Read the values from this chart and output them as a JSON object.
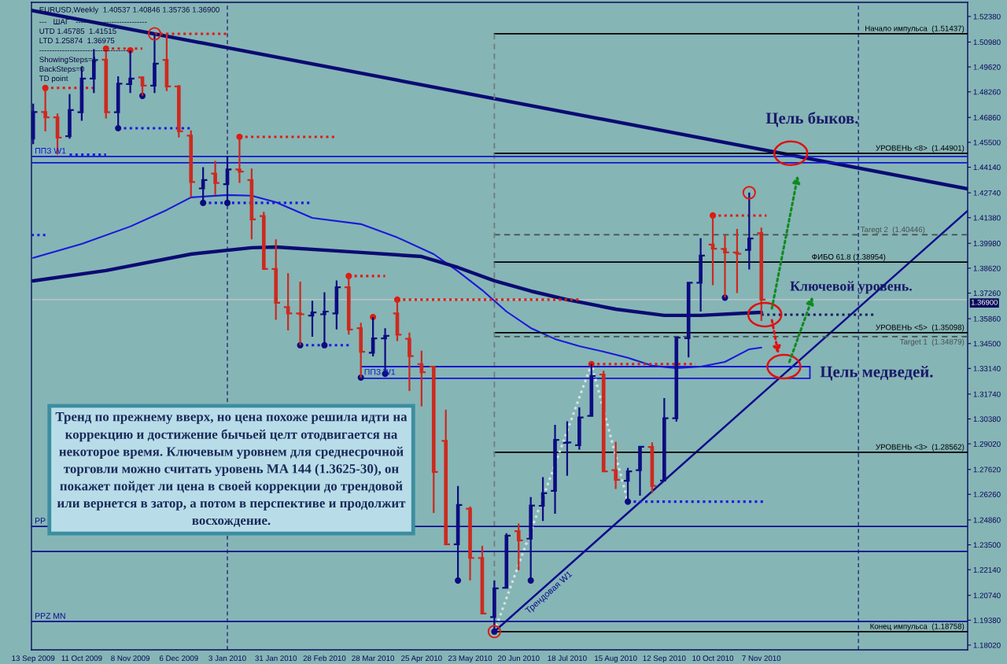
{
  "chart_data": {
    "type": "candlestick",
    "title": "EURUSD,Weekly  1.40537 1.40846 1.35736 1.36900",
    "subtitle": "---   ШАГ   ----------------------------\nUTD 1.45785  1.41515\nLTD 1.25874  1.36975\n-----------------------------------\nShowingSteps=1\nBackSteps=0\nTD point",
    "x": [
      "2009-09-13",
      "2009-09-20",
      "2009-09-27",
      "2009-10-04",
      "2009-10-11",
      "2009-10-18",
      "2009-10-25",
      "2009-11-01",
      "2009-11-08",
      "2009-11-15",
      "2009-11-22",
      "2009-11-29",
      "2009-12-06",
      "2009-12-13",
      "2009-12-20",
      "2009-12-27",
      "2010-01-03",
      "2010-01-10",
      "2010-01-17",
      "2010-01-24",
      "2010-01-31",
      "2010-02-07",
      "2010-02-14",
      "2010-02-21",
      "2010-02-28",
      "2010-03-07",
      "2010-03-14",
      "2010-03-21",
      "2010-03-28",
      "2010-04-04",
      "2010-04-11",
      "2010-04-18",
      "2010-04-25",
      "2010-05-02",
      "2010-05-09",
      "2010-05-16",
      "2010-05-23",
      "2010-05-30",
      "2010-06-06",
      "2010-06-13",
      "2010-06-20",
      "2010-06-27",
      "2010-07-04",
      "2010-07-11",
      "2010-07-18",
      "2010-07-25",
      "2010-08-01",
      "2010-08-08",
      "2010-08-15",
      "2010-08-22",
      "2010-08-29",
      "2010-09-05",
      "2010-09-12",
      "2010-09-19",
      "2010-09-26",
      "2010-10-03",
      "2010-10-10",
      "2010-10-17",
      "2010-10-24",
      "2010-10-31",
      "2010-11-07"
    ],
    "ohlc": [
      [
        1.457,
        1.4761,
        1.454,
        1.4716
      ],
      [
        1.4716,
        1.4847,
        1.461,
        1.4687
      ],
      [
        1.4687,
        1.4708,
        1.4483,
        1.4576
      ],
      [
        1.4583,
        1.4814,
        1.457,
        1.4726
      ],
      [
        1.4715,
        1.4963,
        1.4668,
        1.4898
      ],
      [
        1.4898,
        1.5059,
        1.4819,
        1.5
      ],
      [
        1.5002,
        1.5063,
        1.468,
        1.4715
      ],
      [
        1.4715,
        1.4911,
        1.4629,
        1.487
      ],
      [
        1.4868,
        1.5053,
        1.4819,
        1.4898
      ],
      [
        1.4905,
        1.4911,
        1.4804,
        1.486
      ],
      [
        1.486,
        1.5143,
        1.4819,
        1.498
      ],
      [
        1.5001,
        1.5145,
        1.483,
        1.4855
      ],
      [
        1.4855,
        1.4864,
        1.4576,
        1.461
      ],
      [
        1.4587,
        1.4615,
        1.4251,
        1.4333
      ],
      [
        1.4298,
        1.4414,
        1.4219,
        1.4344
      ],
      [
        1.4379,
        1.4448,
        1.4263,
        1.4328
      ],
      [
        1.4321,
        1.4476,
        1.4219,
        1.4402
      ],
      [
        1.4402,
        1.458,
        1.4328,
        1.439
      ],
      [
        1.4344,
        1.4407,
        1.402,
        1.4129
      ],
      [
        1.4147,
        1.417,
        1.3858,
        1.3858
      ],
      [
        1.3858,
        1.402,
        1.358,
        1.3673
      ],
      [
        1.3649,
        1.3835,
        1.3522,
        1.3615
      ],
      [
        1.3615,
        1.3788,
        1.3441,
        1.361
      ],
      [
        1.3603,
        1.3684,
        1.3487,
        1.362
      ],
      [
        1.361,
        1.373,
        1.3441,
        1.3625
      ],
      [
        1.3615,
        1.3795,
        1.3527,
        1.3758
      ],
      [
        1.3758,
        1.3819,
        1.3499,
        1.3527
      ],
      [
        1.3534,
        1.3564,
        1.3264,
        1.3405
      ],
      [
        1.34,
        1.3595,
        1.338,
        1.3478
      ],
      [
        1.3478,
        1.3534,
        1.3285,
        1.3492
      ],
      [
        1.3615,
        1.369,
        1.3464,
        1.3499
      ],
      [
        1.3476,
        1.351,
        1.3191,
        1.3382
      ],
      [
        1.3338,
        1.3411,
        1.3107,
        1.3293
      ],
      [
        1.3324,
        1.3325,
        1.2524,
        1.2748
      ],
      [
        1.2918,
        1.3089,
        1.2353,
        1.2353
      ],
      [
        1.2353,
        1.2672,
        1.2155,
        1.2568
      ],
      [
        1.2547,
        1.256,
        1.2155,
        1.2278
      ],
      [
        1.2278,
        1.2345,
        1.1971,
        1.1974
      ],
      [
        1.1955,
        1.2155,
        1.18758,
        1.2112
      ],
      [
        1.2115,
        1.2414,
        1.211,
        1.24
      ],
      [
        1.2425,
        1.2466,
        1.2211,
        1.2374
      ],
      [
        1.2384,
        1.2611,
        1.2155,
        1.2565
      ],
      [
        1.2563,
        1.272,
        1.248,
        1.2632
      ],
      [
        1.2645,
        1.3006,
        1.252,
        1.2924
      ],
      [
        1.2907,
        1.3025,
        1.2727,
        1.291
      ],
      [
        1.2895,
        1.3101,
        1.287,
        1.3046
      ],
      [
        1.3055,
        1.3338,
        1.3051,
        1.3273
      ],
      [
        1.3281,
        1.3301,
        1.2748,
        1.2752
      ],
      [
        1.2758,
        1.2913,
        1.2655,
        1.2705
      ],
      [
        1.27,
        1.277,
        1.2586,
        1.2752
      ],
      [
        1.2758,
        1.2887,
        1.2619,
        1.2886
      ],
      [
        1.2885,
        1.291,
        1.2633,
        1.2672
      ],
      [
        1.2701,
        1.3152,
        1.27,
        1.3042
      ],
      [
        1.3042,
        1.3486,
        1.3023,
        1.3483
      ],
      [
        1.3479,
        1.3787,
        1.3375,
        1.3783
      ],
      [
        1.3783,
        1.4026,
        1.3625,
        1.3931
      ],
      [
        1.3991,
        1.415,
        1.3769,
        1.3969
      ],
      [
        1.3967,
        1.4045,
        1.3701,
        1.3948
      ],
      [
        1.3948,
        1.4077,
        1.3726,
        1.3941
      ],
      [
        1.3962,
        1.4275,
        1.3855,
        1.4024
      ],
      [
        1.40537,
        1.40846,
        1.35736,
        1.369
      ]
    ],
    "colors": [
      "#0c0c80",
      "#cc2a1e",
      "#cc2a1e",
      "#0c0c80",
      "#0c0c80",
      "#0c0c80",
      "#cc2a1e",
      "#0c0c80",
      "#0c0c80",
      "#cc2a1e",
      "#0c0c80",
      "#cc2a1e",
      "#cc2a1e",
      "#cc2a1e",
      "#0c0c80",
      "#cc2a1e",
      "#0c0c80",
      "#cc2a1e",
      "#cc2a1e",
      "#cc2a1e",
      "#cc2a1e",
      "#cc2a1e",
      "#cc2a1e",
      "#0c0c80",
      "#0c0c80",
      "#0c0c80",
      "#cc2a1e",
      "#cc2a1e",
      "#0c0c80",
      "#0c0c80",
      "#cc2a1e",
      "#cc2a1e",
      "#cc2a1e",
      "#cc2a1e",
      "#cc2a1e",
      "#0c0c80",
      "#cc2a1e",
      "#cc2a1e",
      "#0c0c80",
      "#0c0c80",
      "#cc2a1e",
      "#0c0c80",
      "#0c0c80",
      "#0c0c80",
      "#0c0c80",
      "#0c0c80",
      "#0c0c80",
      "#cc2a1e",
      "#cc2a1e",
      "#0c0c80",
      "#0c0c80",
      "#cc2a1e",
      "#0c0c80",
      "#0c0c80",
      "#0c0c80",
      "#0c0c80",
      "#cc2a1e",
      "#cc2a1e",
      "#cc2a1e",
      "#0c0c80",
      "#cc2a1e"
    ],
    "xlim": [
      "2009-09-12",
      "2011-03-06"
    ],
    "ylim": [
      1.1776,
      1.5315
    ],
    "xticks": [
      {
        "value": "2009-09-13",
        "label": "13 Sep 2009"
      },
      {
        "value": "2009-10-11",
        "label": "11 Oct 2009"
      },
      {
        "value": "2009-11-08",
        "label": "8 Nov 2009"
      },
      {
        "value": "2009-12-06",
        "label": "6 Dec 2009"
      },
      {
        "value": "2010-01-03",
        "label": "3 Jan 2010"
      },
      {
        "value": "2010-01-31",
        "label": "31 Jan 2010"
      },
      {
        "value": "2010-02-28",
        "label": "28 Feb 2010"
      },
      {
        "value": "2010-03-28",
        "label": "28 Mar 2010"
      },
      {
        "value": "2010-04-25",
        "label": "25 Apr 2010"
      },
      {
        "value": "2010-05-23",
        "label": "23 May 2010"
      },
      {
        "value": "2010-06-20",
        "label": "20 Jun 2010"
      },
      {
        "value": "2010-07-18",
        "label": "18 Jul 2010"
      },
      {
        "value": "2010-08-15",
        "label": "15 Aug 2010"
      },
      {
        "value": "2010-09-12",
        "label": "12 Sep 2010"
      },
      {
        "value": "2010-10-10",
        "label": "10 Oct 2010"
      },
      {
        "value": "2010-11-07",
        "label": "7 Nov 2010"
      }
    ],
    "yticks": [
      {
        "value": 1.5238,
        "label": "1.52380"
      },
      {
        "value": 1.5098,
        "label": "1.50980"
      },
      {
        "value": 1.4962,
        "label": "1.49620"
      },
      {
        "value": 1.4826,
        "label": "1.48260"
      },
      {
        "value": 1.4686,
        "label": "1.46860"
      },
      {
        "value": 1.455,
        "label": "1.45500"
      },
      {
        "value": 1.4414,
        "label": "1.44140"
      },
      {
        "value": 1.4274,
        "label": "1.42740"
      },
      {
        "value": 1.4138,
        "label": "1.41380"
      },
      {
        "value": 1.3998,
        "label": "1.39980"
      },
      {
        "value": 1.3862,
        "label": "1.38620"
      },
      {
        "value": 1.3726,
        "label": "1.37260"
      },
      {
        "value": 1.3586,
        "label": "1.35860"
      },
      {
        "value": 1.345,
        "label": "1.34500"
      },
      {
        "value": 1.3314,
        "label": "1.33140"
      },
      {
        "value": 1.3174,
        "label": "1.31740"
      },
      {
        "value": 1.3038,
        "label": "1.30380"
      },
      {
        "value": 1.2902,
        "label": "1.29020"
      },
      {
        "value": 1.2762,
        "label": "1.27620"
      },
      {
        "value": 1.2626,
        "label": "1.26260"
      },
      {
        "value": 1.2486,
        "label": "1.24860"
      },
      {
        "value": 1.235,
        "label": "1.23500"
      },
      {
        "value": 1.2214,
        "label": "1.22140"
      },
      {
        "value": 1.2074,
        "label": "1.20740"
      },
      {
        "value": 1.1938,
        "label": "1.19380"
      },
      {
        "value": 1.1802,
        "label": "1.18020"
      }
    ],
    "grid": false,
    "series": [
      {
        "type": "line",
        "color": "#1a1ad8",
        "x": [
          "2009-09-13",
          "2009-10-11",
          "2009-11-08",
          "2009-11-29",
          "2009-12-13",
          "2010-01-03",
          "2010-01-17",
          "2010-01-31",
          "2010-02-21",
          "2010-03-21",
          "2010-04-11",
          "2010-05-02",
          "2010-05-16",
          "2010-05-30",
          "2010-06-13",
          "2010-06-27",
          "2010-07-11",
          "2010-07-25",
          "2010-08-08",
          "2010-08-22",
          "2010-09-05",
          "2010-09-19",
          "2010-10-03",
          "2010-10-17",
          "2010-10-31",
          "2010-11-07"
        ],
        "values": [
          1.3918,
          1.3995,
          1.409,
          1.418,
          1.4249,
          1.4262,
          1.4258,
          1.4223,
          1.4137,
          1.4103,
          1.403,
          1.3939,
          1.3845,
          1.3742,
          1.3625,
          1.3535,
          1.3475,
          1.3436,
          1.3406,
          1.3372,
          1.3329,
          1.3316,
          1.3324,
          1.335,
          1.3419,
          1.3428
        ]
      },
      {
        "type": "line",
        "color": "#0b0b72",
        "x": [
          "2009-09-13",
          "2009-10-25",
          "2009-12-13",
          "2010-01-17",
          "2010-01-31",
          "2010-03-21",
          "2010-04-25",
          "2010-05-16",
          "2010-06-06",
          "2010-06-27",
          "2010-07-18",
          "2010-08-15",
          "2010-09-12",
          "2010-10-03",
          "2010-11-07"
        ],
        "values": [
          1.3793,
          1.3849,
          1.3939,
          1.3974,
          1.3978,
          1.3948,
          1.3926,
          1.3866,
          1.3793,
          1.3737,
          1.369,
          1.3638,
          1.3604,
          1.3604,
          1.3621
        ]
      },
      {
        "type": "line",
        "color": "#0b0b72",
        "x": [
          "2009-09-12",
          "2011-03-06"
        ],
        "values": [
          1.5271,
          1.4296
        ]
      },
      {
        "type": "line",
        "name": "Трендовая W1",
        "color": "#0d0d8c",
        "x": [
          "2010-06-06",
          "2011-03-06"
        ],
        "values": [
          1.18758,
          1.4176
        ]
      },
      {
        "type": "line",
        "name": "Начало импульса  (1.51437)",
        "color": "#000000",
        "x": [
          "2010-06-06",
          "2011-03-06"
        ],
        "values": [
          1.51437,
          1.51437
        ]
      },
      {
        "type": "line",
        "name": "УРОВЕНЬ <8>  (1.44901)",
        "color": "#000000",
        "x": [
          "2010-06-06",
          "2011-03-06"
        ],
        "values": [
          1.44901,
          1.44901
        ]
      },
      {
        "type": "line",
        "name": "Taregt 2  (1.40446)",
        "color": "#45504f",
        "line_style": "dashed",
        "x": [
          "2010-06-06",
          "2011-03-06"
        ],
        "values": [
          1.40446,
          1.40446
        ]
      },
      {
        "type": "line",
        "name": "ФИБО 61.8 (1.38954)",
        "color": "#000000",
        "x": [
          "2010-06-06",
          "2011-03-06"
        ],
        "values": [
          1.38954,
          1.38954
        ]
      },
      {
        "type": "line",
        "name": "УРОВЕНЬ <5>  (1.35098)",
        "color": "#000000",
        "x": [
          "2010-06-06",
          "2011-03-06"
        ],
        "values": [
          1.35098,
          1.35098
        ]
      },
      {
        "type": "line",
        "name": "Target 1  (1.34879)",
        "color": "#45504f",
        "line_style": "dashed",
        "x": [
          "2010-06-06",
          "2011-03-06"
        ],
        "values": [
          1.34879,
          1.34879
        ]
      },
      {
        "type": "line",
        "name": "УРОВЕНЬ <3>  (1.28562)",
        "color": "#000000",
        "x": [
          "2010-06-06",
          "2011-03-06"
        ],
        "values": [
          1.28562,
          1.28562
        ]
      },
      {
        "type": "line",
        "name": "Конец импульса  (1.18758)",
        "color": "#000000",
        "x": [
          "2010-06-06",
          "2011-03-06"
        ],
        "values": [
          1.18758,
          1.18758
        ]
      },
      {
        "type": "line",
        "color": "#6f7c7c",
        "line_style": "dashed",
        "x": [
          "2010-06-06",
          "2010-06-06"
        ],
        "values": [
          1.51437,
          1.18758
        ]
      },
      {
        "type": "line",
        "name": "PPZ MN",
        "color": "#0c0c90",
        "x": [
          "2009-09-12",
          "2011-03-06"
        ],
        "values": [
          1.1931,
          1.1931
        ]
      },
      {
        "type": "line",
        "name": "ППЗ W1",
        "color": "#1414d2",
        "x": [
          "2009-09-12",
          "2011-03-06"
        ],
        "values": [
          1.4473,
          1.4473
        ]
      },
      {
        "type": "line",
        "color": "#1414d2",
        "x": [
          "2009-09-12",
          "2011-03-06"
        ],
        "values": [
          1.4438,
          1.4438
        ]
      },
      {
        "type": "line",
        "name": "PP",
        "color": "#0c0c90",
        "x": [
          "2009-09-12",
          "2011-03-06"
        ],
        "values": [
          1.2451,
          1.2451
        ]
      },
      {
        "type": "line",
        "color": "#0c0c90",
        "x": [
          "2009-09-12",
          "2011-03-06"
        ],
        "values": [
          1.2314,
          1.2314
        ]
      },
      {
        "type": "line",
        "name": "ППЗ W1",
        "color": "#1414d2",
        "x": [
          "2010-03-21",
          "2010-12-05"
        ],
        "values": [
          1.3324,
          1.3324
        ],
        "errors": [
          null,
          [
            1.326,
            1.3324
          ]
        ]
      },
      {
        "type": "line",
        "color": "#1414d2",
        "x": [
          "2010-03-21",
          "2010-12-05"
        ],
        "values": [
          1.326,
          1.326
        ]
      },
      {
        "type": "line",
        "color": "#d8e4e4",
        "line_style": "dotted",
        "x": [
          "2010-06-06",
          "2010-08-01",
          "2010-08-22"
        ],
        "values": [
          1.18758,
          1.3338,
          1.2586
        ]
      },
      {
        "type": "line",
        "color": "#e01a10",
        "line_style": "dotted",
        "x": [
          "2009-09-20",
          "2009-10-18"
        ],
        "values": [
          1.4847,
          1.4847
        ]
      },
      {
        "type": "line",
        "color": "#e01a10",
        "line_style": "dotted",
        "x": [
          "2009-10-25",
          "2009-11-15"
        ],
        "values": [
          1.5062,
          1.5062
        ]
      },
      {
        "type": "line",
        "color": "#e01a10",
        "line_style": "dotted",
        "x": [
          "2009-11-22",
          "2010-01-03"
        ],
        "values": [
          1.5143,
          1.5143
        ]
      },
      {
        "type": "line",
        "color": "#e01a10",
        "line_style": "dotted",
        "x": [
          "2010-01-10",
          "2010-03-07"
        ],
        "values": [
          1.458,
          1.458
        ]
      },
      {
        "type": "line",
        "color": "#e01a10",
        "line_style": "dotted",
        "x": [
          "2010-03-14",
          "2010-04-04"
        ],
        "values": [
          1.3819,
          1.3819
        ]
      },
      {
        "type": "line",
        "color": "#e01a10",
        "line_style": "dotted",
        "x": [
          "2010-04-11",
          "2010-07-25"
        ],
        "values": [
          1.369,
          1.369
        ]
      },
      {
        "type": "line",
        "color": "#e01a10",
        "line_style": "dotted",
        "x": [
          "2010-08-01",
          "2010-09-30"
        ],
        "values": [
          1.3338,
          1.3338
        ]
      },
      {
        "type": "line",
        "color": "#e01a10",
        "line_style": "dotted",
        "x": [
          "2010-10-10",
          "2010-11-10"
        ],
        "values": [
          1.415,
          1.415
        ]
      },
      {
        "type": "line",
        "color": "#1a1ae0",
        "line_style": "dotted",
        "x": [
          "2009-09-12",
          "2009-09-21"
        ],
        "values": [
          1.4043,
          1.4043
        ]
      },
      {
        "type": "line",
        "color": "#1a1ae0",
        "line_style": "dotted",
        "x": [
          "2009-10-04",
          "2009-10-25"
        ],
        "values": [
          1.4483,
          1.4483
        ]
      },
      {
        "type": "line",
        "color": "#1a1ae0",
        "line_style": "dotted",
        "x": [
          "2009-11-01",
          "2009-12-13"
        ],
        "values": [
          1.4627,
          1.4627
        ]
      },
      {
        "type": "line",
        "color": "#1a1ae0",
        "line_style": "dotted",
        "x": [
          "2009-12-20",
          "2010-02-21"
        ],
        "values": [
          1.4219,
          1.4219
        ]
      },
      {
        "type": "line",
        "color": "#1a1ae0",
        "line_style": "dotted",
        "x": [
          "2010-02-14",
          "2010-03-14"
        ],
        "values": [
          1.3441,
          1.3441
        ]
      },
      {
        "type": "line",
        "color": "#1a1ae0",
        "line_style": "dotted",
        "x": [
          "2010-08-22",
          "2010-11-09"
        ],
        "values": [
          1.2586,
          1.2586
        ]
      },
      {
        "type": "line",
        "color": "#1a1a60",
        "line_style": "dotted",
        "x": [
          "2010-11-07",
          "2011-01-11"
        ],
        "values": [
          1.3608,
          1.3608
        ]
      },
      {
        "type": "scatter",
        "color": "#e01a10",
        "marker": "circle",
        "x": [
          "2009-09-20",
          "2009-10-25",
          "2009-11-08",
          "2010-01-10",
          "2010-03-14",
          "2010-03-28",
          "2010-04-11",
          "2010-08-01",
          "2010-10-10"
        ],
        "values": [
          1.4847,
          1.5062,
          1.5053,
          1.458,
          1.3819,
          1.3595,
          1.369,
          1.3338,
          1.415
        ]
      },
      {
        "type": "scatter",
        "color": "#0c0c80",
        "marker": "circle",
        "x": [
          "2009-11-01",
          "2009-11-15",
          "2009-12-20",
          "2010-01-03",
          "2010-02-14",
          "2010-02-28",
          "2010-03-21",
          "2010-04-04",
          "2010-05-16",
          "2010-06-06",
          "2010-06-27",
          "2010-08-22",
          "2010-10-17"
        ],
        "values": [
          1.4627,
          1.4804,
          1.4219,
          1.4219,
          1.3441,
          1.3441,
          1.3264,
          1.3285,
          1.2155,
          1.18758,
          1.2155,
          1.2586,
          1.3701
        ]
      },
      {
        "type": "bubble",
        "color": "#e01a10",
        "x": [
          "2009-11-22",
          "2010-06-06",
          "2010-10-31"
        ],
        "values": [
          1.5143,
          1.18758,
          1.4275
        ],
        "sizes": [
          1,
          1,
          1
        ]
      }
    ],
    "ref_lines": [
      {
        "axis": "x",
        "value": "2010-01-03",
        "color": "#1a1a70",
        "line_style": "dashed"
      },
      {
        "axis": "x",
        "value": "2011-01-02",
        "color": "#1a1a70",
        "line_style": "dashed"
      },
      {
        "axis": "y",
        "value": 1.369,
        "label": "1.36900",
        "color": "#c4c8c8"
      }
    ],
    "annotations": [
      "Тренд по прежнему вверх, но цена похоже решила идти на\nкоррекцию и достижение бычьей целт отодвигается на\nнекоторое время. Ключевым уровнем для среднесрочной\nторговли можно считать уровень MA 144 (1.3625-30), он\nпокажет пойдет ли цена в своей коррекции до трендовой\nили вернется в затор, а потом в перспективе и продолжит\nвосхождение.",
      {
        "text": "Цель быков.",
        "x": "2010-11-24",
        "y": 1.449
      },
      {
        "text": "Ключевой уровень.",
        "x": "2010-11-09",
        "y": 1.3608
      },
      {
        "text": "Цель медведей.",
        "x": "2010-11-20",
        "y": 1.3324
      }
    ]
  }
}
